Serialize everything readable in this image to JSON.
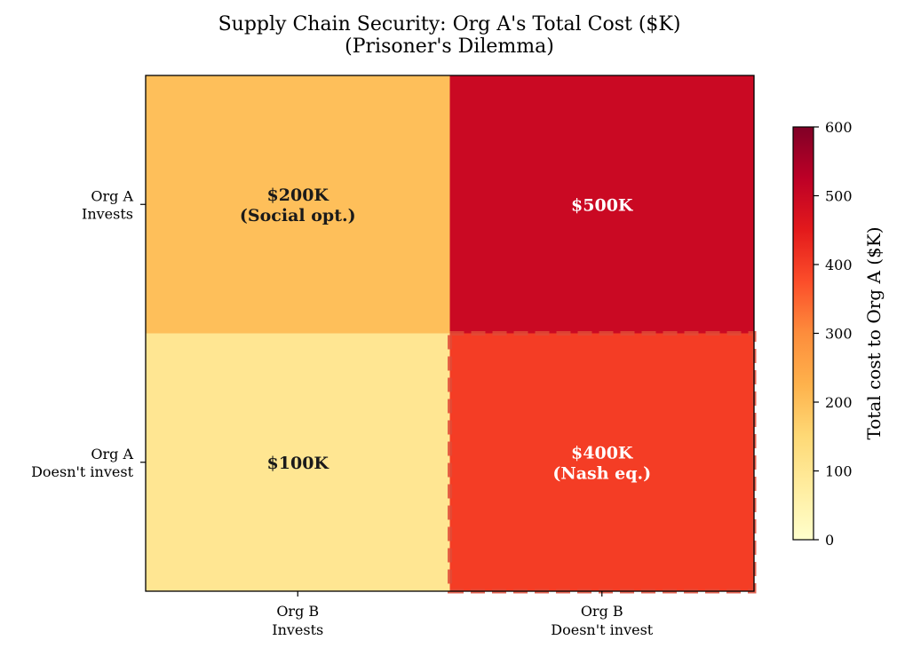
{
  "chart_data": {
    "type": "heatmap",
    "title_lines": [
      "Supply Chain Security: Org A's Total Cost ($K)",
      "(Prisoner's Dilemma)"
    ],
    "rows": [
      {
        "lines": [
          "Org A",
          "Invests"
        ]
      },
      {
        "lines": [
          "Org A",
          "Doesn't invest"
        ]
      }
    ],
    "columns": [
      {
        "lines": [
          "Org B",
          "Invests"
        ]
      },
      {
        "lines": [
          "Org B",
          "Doesn't invest"
        ]
      }
    ],
    "values": [
      [
        200,
        500
      ],
      [
        100,
        400
      ]
    ],
    "cell_labels": [
      [
        [
          "$200K",
          "(Social opt.)"
        ],
        [
          "$500K"
        ]
      ],
      [
        [
          "$100K"
        ],
        [
          "$400K",
          "(Nash eq.)"
        ]
      ]
    ],
    "highlighted_cell": {
      "row": 1,
      "col": 1,
      "style": "dashed"
    },
    "colormap": "YlOrRd",
    "vmin": 0,
    "vmax": 600,
    "colorbar": {
      "label": "Total cost to Org A ($K)",
      "ticks": [
        0,
        100,
        200,
        300,
        400,
        500,
        600
      ]
    },
    "colors": {
      "highlight_edge": "#e04a36",
      "dark_text": "#1a1a1a",
      "light_text": "#ffffff"
    }
  }
}
